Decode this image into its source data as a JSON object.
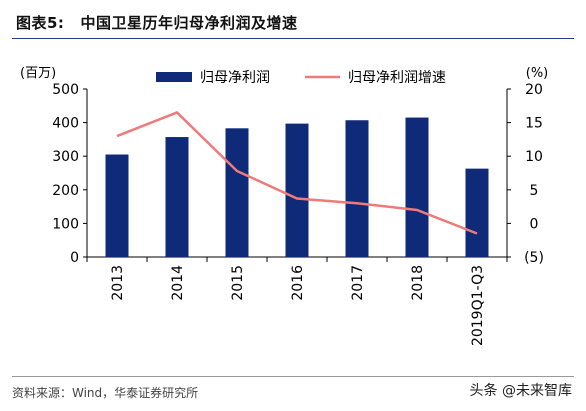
{
  "header": {
    "figure_no": "图表5:",
    "title": "中国卫星历年归母净利润及增速"
  },
  "footer": {
    "source": "资料来源：Wind，华泰证券研究所",
    "watermark": "头条 @未来智库"
  },
  "chart_data": {
    "type": "bar+line",
    "categories": [
      "2013",
      "2014",
      "2015",
      "2016",
      "2017",
      "2018",
      "2019Q1-Q3"
    ],
    "series": [
      {
        "name": "归母净利润",
        "type": "bar",
        "axis": "left",
        "color": "#0e2a78",
        "values": [
          305,
          357,
          383,
          397,
          407,
          415,
          263
        ]
      },
      {
        "name": "归母净利润增速",
        "type": "line",
        "axis": "right",
        "color": "#f07a7a",
        "values": [
          13.0,
          16.5,
          7.8,
          3.7,
          3.0,
          2.0,
          -1.5
        ]
      }
    ],
    "left_axis": {
      "unit": "(百万)",
      "min": 0,
      "max": 500,
      "ticks": [
        0,
        100,
        200,
        300,
        400,
        500
      ]
    },
    "right_axis": {
      "unit": "(%)",
      "min": -5,
      "max": 20,
      "ticks": [
        -5,
        0,
        5,
        10,
        15,
        20
      ],
      "tick_labels": [
        "(5)",
        "0",
        "5",
        "10",
        "15",
        "20"
      ]
    },
    "legend": "top-center",
    "grid": false
  }
}
